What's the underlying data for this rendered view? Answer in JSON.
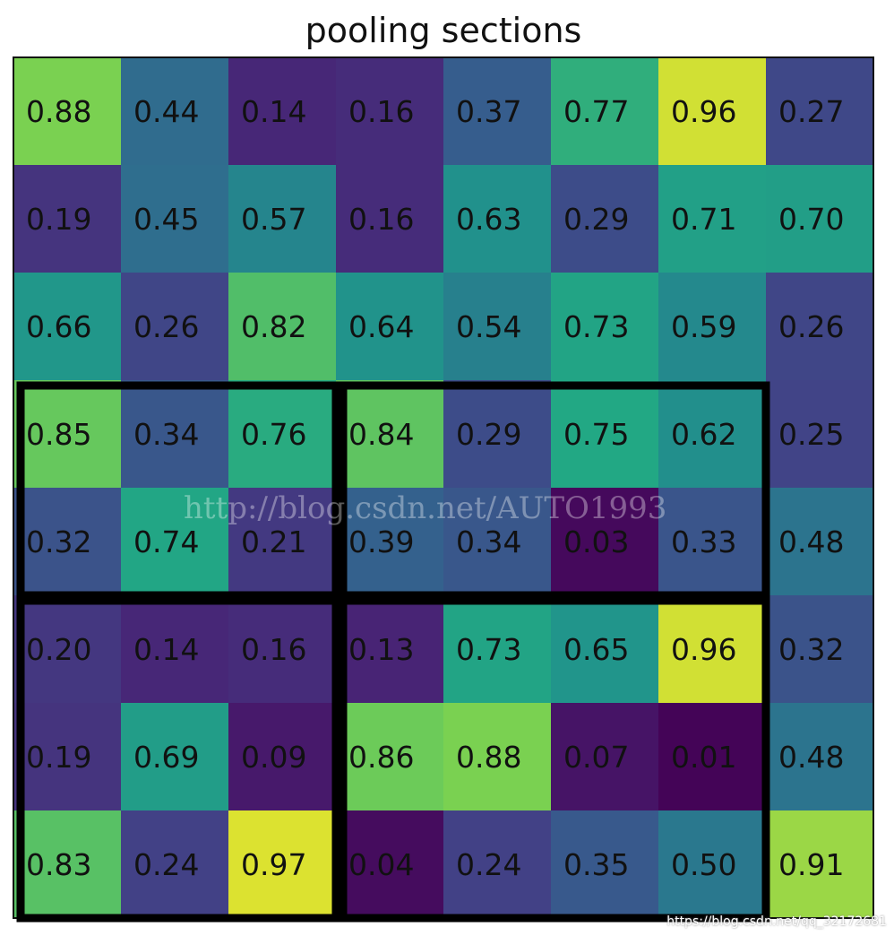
{
  "chart_data": {
    "type": "heatmap",
    "title": "pooling sections",
    "rows": 8,
    "cols": 8,
    "values": [
      [
        0.88,
        0.44,
        0.14,
        0.16,
        0.37,
        0.77,
        0.96,
        0.27
      ],
      [
        0.19,
        0.45,
        0.57,
        0.16,
        0.63,
        0.29,
        0.71,
        0.7
      ],
      [
        0.66,
        0.26,
        0.82,
        0.64,
        0.54,
        0.73,
        0.59,
        0.26
      ],
      [
        0.85,
        0.34,
        0.76,
        0.84,
        0.29,
        0.75,
        0.62,
        0.25
      ],
      [
        0.32,
        0.74,
        0.21,
        0.39,
        0.34,
        0.03,
        0.33,
        0.48
      ],
      [
        0.2,
        0.14,
        0.16,
        0.13,
        0.73,
        0.65,
        0.96,
        0.32
      ],
      [
        0.19,
        0.69,
        0.09,
        0.86,
        0.88,
        0.07,
        0.01,
        0.48
      ],
      [
        0.83,
        0.24,
        0.97,
        0.04,
        0.24,
        0.35,
        0.5,
        0.91
      ]
    ],
    "labels": [
      [
        "0.88",
        "0.44",
        "0.14",
        "0.16",
        "0.37",
        "0.77",
        "0.96",
        "0.27"
      ],
      [
        "0.19",
        "0.45",
        "0.57",
        "0.16",
        "0.63",
        "0.29",
        "0.71",
        "0.70"
      ],
      [
        "0.66",
        "0.26",
        "0.82",
        "0.64",
        "0.54",
        "0.73",
        "0.59",
        "0.26"
      ],
      [
        "0.85",
        "0.34",
        "0.76",
        "0.84",
        "0.29",
        "0.75",
        "0.62",
        "0.25"
      ],
      [
        "0.32",
        "0.74",
        "0.21",
        "0.39",
        "0.34",
        "0.03",
        "0.33",
        "0.48"
      ],
      [
        "0.20",
        "0.14",
        "0.16",
        "0.13",
        "0.73",
        "0.65",
        "0.96",
        "0.32"
      ],
      [
        "0.19",
        "0.69",
        "0.09",
        "0.86",
        "0.88",
        "0.07",
        "0.01",
        "0.48"
      ],
      [
        "0.83",
        "0.24",
        "0.97",
        "0.04",
        "0.24",
        "0.35",
        "0.50",
        "0.91"
      ]
    ],
    "colormap": "viridis",
    "grid": false,
    "pooling_sections": [
      {
        "row_start": 3,
        "row_end": 4,
        "col_start": 0,
        "col_end": 2
      },
      {
        "row_start": 3,
        "row_end": 4,
        "col_start": 3,
        "col_end": 6
      },
      {
        "row_start": 5,
        "row_end": 7,
        "col_start": 0,
        "col_end": 2
      },
      {
        "row_start": 5,
        "row_end": 7,
        "col_start": 3,
        "col_end": 6
      }
    ]
  },
  "watermark": "http://blog.csdn.net/AUTO1993",
  "credit": "https://blog.csdn.net/qq_32172681"
}
